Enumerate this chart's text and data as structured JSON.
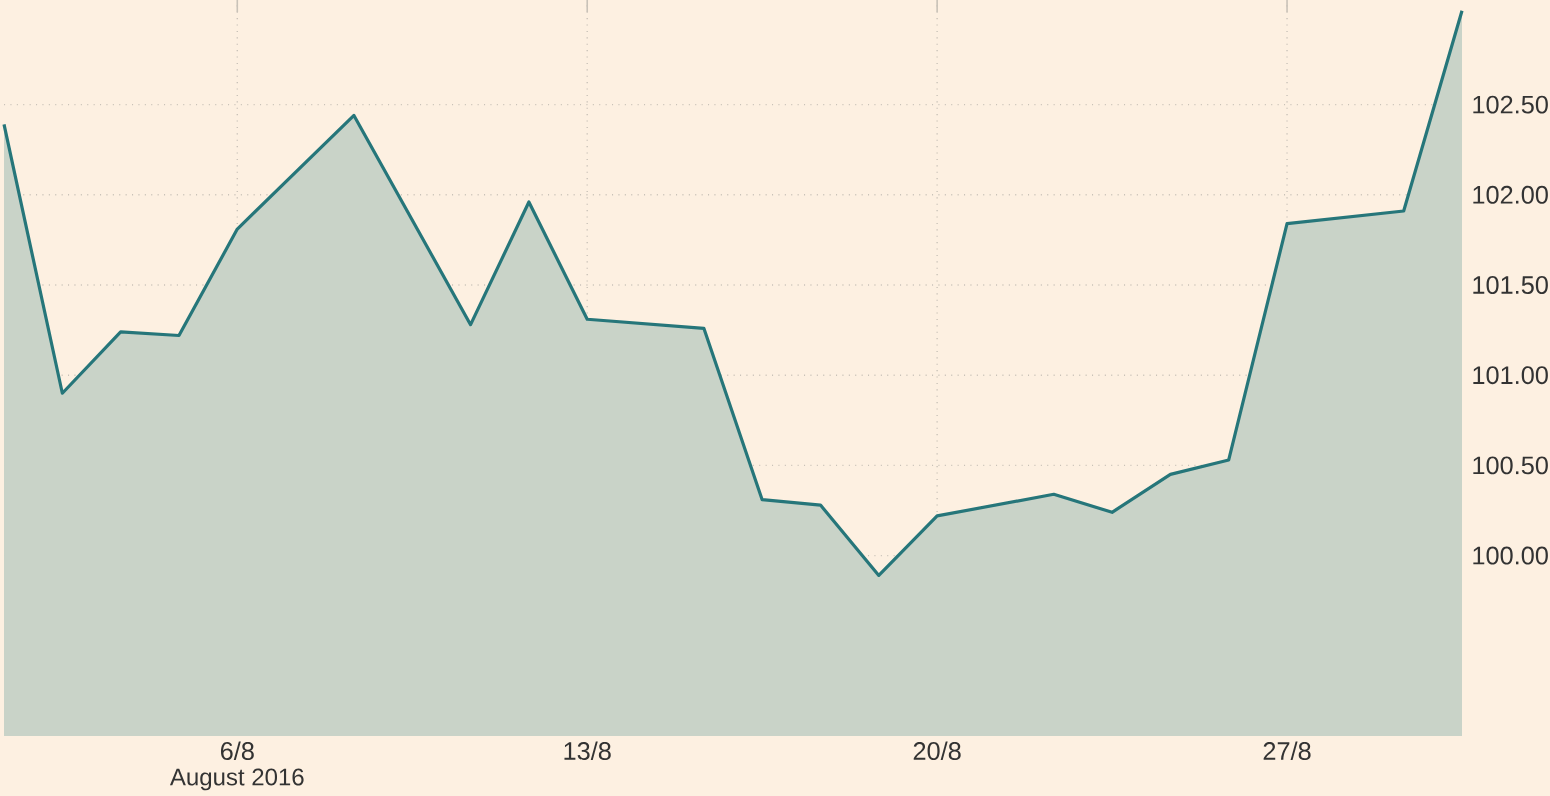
{
  "chart_data": {
    "type": "area",
    "x": [
      "2016-08-01T08:00",
      "2016-08-02T12:00",
      "2016-08-03T16:00",
      "2016-08-04T20:00",
      "2016-08-06T00:00",
      "2016-08-08T08:00",
      "2016-08-10T16:00",
      "2016-08-11T20:00",
      "2016-08-13T00:00",
      "2016-08-15T08:00",
      "2016-08-16T12:00",
      "2016-08-17T16:00",
      "2016-08-18T20:00",
      "2016-08-20T00:00",
      "2016-08-22T08:00",
      "2016-08-23T12:00",
      "2016-08-24T16:00",
      "2016-08-25T20:00",
      "2016-08-27T00:00",
      "2016-08-29T08:00",
      "2016-08-30T12:00"
    ],
    "values": [
      102.39,
      100.9,
      101.24,
      101.22,
      101.81,
      102.44,
      101.28,
      101.96,
      101.31,
      101.26,
      100.31,
      100.28,
      99.89,
      100.22,
      100.34,
      100.24,
      100.45,
      100.53,
      101.84,
      101.91,
      103.02
    ],
    "color": "#26767a",
    "xlim": [
      "2016-08-01T08:00",
      "2016-08-30T12:00"
    ],
    "xticks": [
      {
        "value": "2016-08-06",
        "label": "6/8"
      },
      {
        "value": "2016-08-13",
        "label": "13/8"
      },
      {
        "value": "2016-08-20",
        "label": "20/8"
      },
      {
        "value": "2016-08-27",
        "label": "27/8"
      }
    ],
    "ylim": [
      99.0,
      103.08
    ],
    "yticks": [
      {
        "value": 100,
        "label": "100.00"
      },
      {
        "value": 100.5,
        "label": "100.50"
      },
      {
        "value": 101,
        "label": "101.00"
      },
      {
        "value": 101.5,
        "label": "101.50"
      },
      {
        "value": 102,
        "label": "102.00"
      },
      {
        "value": 102.5,
        "label": "102.50"
      }
    ],
    "grid": true,
    "annotations": [
      "August 2016"
    ]
  }
}
